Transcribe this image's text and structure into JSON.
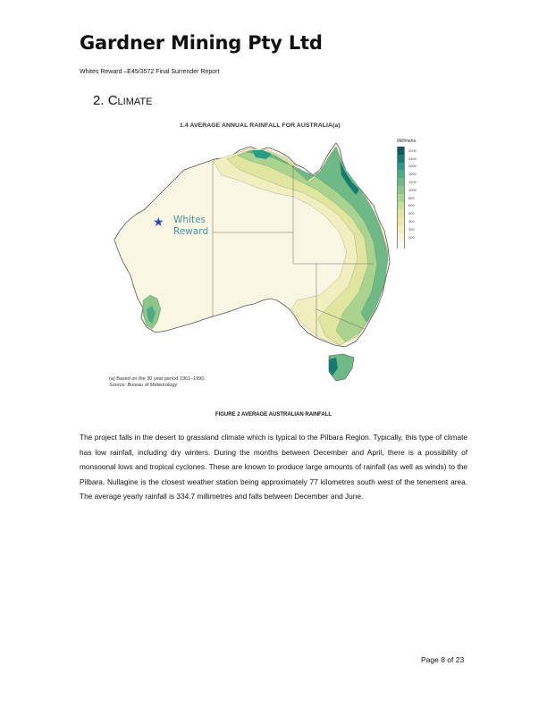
{
  "header": {
    "company": "Gardner Mining Pty Ltd",
    "subtitle": "Whites Reward –E45/3572 Final Surrender Report"
  },
  "section": {
    "number": "2.",
    "title_initial": "C",
    "title_rest": "LIMATE"
  },
  "figure": {
    "map_title": "1.4   AVERAGE ANNUAL RAINFALL FOR AUSTRALIA(a)",
    "marker_label_line1": "Whites",
    "marker_label_line2": "Reward",
    "footnote": "(a) Based on the 30 year period 1961–1990.",
    "source": "Source: Bureau of Meteorology",
    "caption": "FIGURE 2 AVERAGE AUSTRALIAN RAINFALL",
    "legend": {
      "title": "Millimetre",
      "items": [
        {
          "label": "3200",
          "color": "#0f5b5c"
        },
        {
          "label": "2400",
          "color": "#177a73"
        },
        {
          "label": "2000",
          "color": "#2a9b86"
        },
        {
          "label": "1600",
          "color": "#4daa82"
        },
        {
          "label": "1200",
          "color": "#6fb987"
        },
        {
          "label": "1000",
          "color": "#8cc68c"
        },
        {
          "label": "800",
          "color": "#a9d38f"
        },
        {
          "label": "600",
          "color": "#c8dd96"
        },
        {
          "label": "500",
          "color": "#e0e59f"
        },
        {
          "label": "400",
          "color": "#eae8a6"
        },
        {
          "label": "300",
          "color": "#f1eebf"
        },
        {
          "label": "200",
          "color": "#f7f5dc"
        },
        {
          "label": "",
          "color": "#fcfbf0"
        }
      ]
    }
  },
  "body": {
    "paragraph": "The project falls in the desert to grassland climate which is typical to the Pilbara Region. Typically, this type of climate has low rainfall, including dry winters. During the months between December and April, there is a possibility of monsoonal lows and tropical cyclones. These are known to produce large amounts of rainfall (as well as winds) to the Pilbara. Nullagine is the closest weather station being approximately 77 kilometres south west of the tenement area. The average yearly rainfall is 334.7 millimetres and falls between December and June."
  },
  "footer": {
    "page": "Page 8 of 23"
  }
}
